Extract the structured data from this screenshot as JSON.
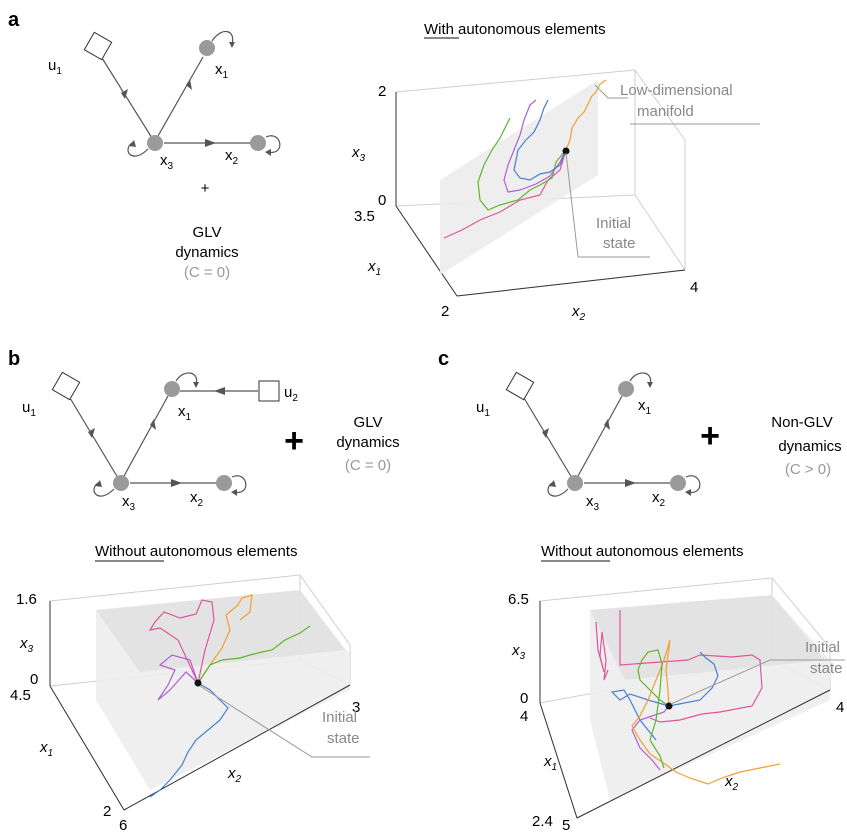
{
  "panels": {
    "a": {
      "label": "a",
      "nodes": {
        "u": "u",
        "u_sub": "1",
        "x1": "x",
        "x1_sub": "1",
        "x2": "x",
        "x2_sub": "2",
        "x3": "x",
        "x3_sub": "3"
      },
      "plus": "+",
      "dynamics_line1": "GLV",
      "dynamics_line2": "dynamics",
      "dynamics_cond": "(C = 0)",
      "title_emph": "With",
      "title_rest": "autonomous elements",
      "plot": {
        "axis_x3": "x",
        "axis_x3_sub": "3",
        "axis_x1": "x",
        "axis_x1_sub": "1",
        "axis_x2": "x",
        "axis_x2_sub": "2",
        "tick_x3_max": "2",
        "tick_x3_min": "0",
        "tick_x1_max": "3.5",
        "tick_x1_min": "2",
        "tick_x2_max": "4",
        "manifold_line1": "Low-dimensional",
        "manifold_line2": "manifold",
        "initial_line1": "Initial",
        "initial_line2": "state"
      }
    },
    "b": {
      "label": "b",
      "nodes": {
        "u1": "u",
        "u1_sub": "1",
        "u2": "u",
        "u2_sub": "2",
        "x1": "x",
        "x1_sub": "1",
        "x2": "x",
        "x2_sub": "2",
        "x3": "x",
        "x3_sub": "3"
      },
      "plus": "+",
      "dynamics_line1": "GLV",
      "dynamics_line2": "dynamics",
      "dynamics_cond": "(C = 0)",
      "title_emph": "Without",
      "title_rest": "autonomous elements",
      "plot": {
        "axis_x3": "x",
        "axis_x3_sub": "3",
        "axis_x1": "x",
        "axis_x1_sub": "1",
        "axis_x2": "x",
        "axis_x2_sub": "2",
        "tick_x3_max": "1.6",
        "tick_x3_min": "0",
        "tick_x1_max": "4.5",
        "tick_x1_min": "2",
        "tick_x2_min": "6",
        "tick_x2_max": "3",
        "initial_line1": "Initial",
        "initial_line2": "state"
      }
    },
    "c": {
      "label": "c",
      "nodes": {
        "u1": "u",
        "u1_sub": "1",
        "x1": "x",
        "x1_sub": "1",
        "x2": "x",
        "x2_sub": "2",
        "x3": "x",
        "x3_sub": "3"
      },
      "plus": "+",
      "dynamics_line1": "Non-GLV",
      "dynamics_line2": "dynamics",
      "dynamics_cond": "(C > 0)",
      "title_emph": "Without",
      "title_rest": "autonomous elements",
      "plot": {
        "axis_x3": "x",
        "axis_x3_sub": "3",
        "axis_x1": "x",
        "axis_x1_sub": "1",
        "axis_x2": "x",
        "axis_x2_sub": "2",
        "tick_x3_max": "6.5",
        "tick_x3_min": "0",
        "tick_x1_max": "4",
        "tick_x1_min": "2.4",
        "tick_x2_min": "5",
        "tick_x2_max": "4",
        "initial_line1": "Initial",
        "initial_line2": "state"
      }
    }
  },
  "colors": {
    "node": "#9a9a9a",
    "arrow": "#555555",
    "box": "#d0d0d0",
    "traj_green": "#5cb82a",
    "traj_blue": "#4a7fd0",
    "traj_orange": "#f0a030",
    "traj_pink": "#e0559a",
    "traj_purple": "#b060d0"
  }
}
